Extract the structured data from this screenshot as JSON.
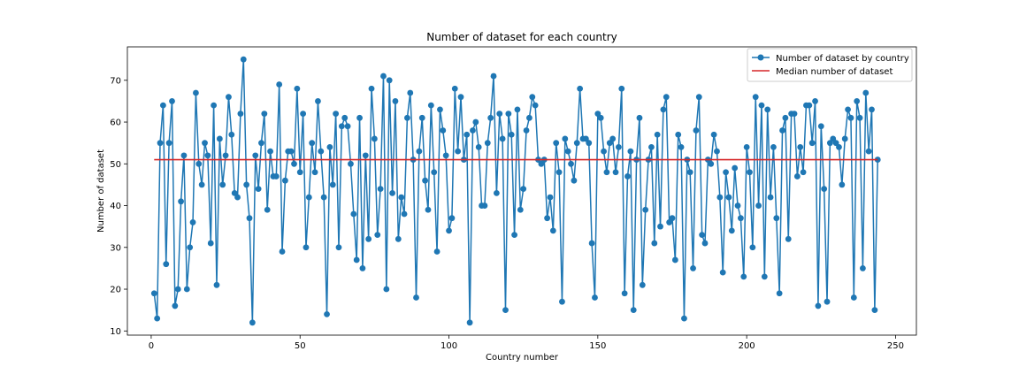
{
  "chart_data": {
    "type": "line",
    "title": "Number of dataset for each country",
    "xlabel": "Country number",
    "ylabel": "Number of dataset",
    "xlim": [
      -8,
      257
    ],
    "ylim": [
      9,
      78
    ],
    "xticks": [
      0,
      50,
      100,
      150,
      200,
      250
    ],
    "yticks": [
      10,
      20,
      30,
      40,
      50,
      60,
      70
    ],
    "grid": false,
    "legend_position": "top-right",
    "series": [
      {
        "name": "Number of dataset by country",
        "color": "#1f77b4",
        "marker": "circle",
        "x_start": 1,
        "values": [
          19,
          13,
          55,
          64,
          26,
          55,
          65,
          16,
          20,
          41,
          52,
          20,
          30,
          36,
          67,
          50,
          45,
          55,
          52,
          31,
          64,
          21,
          56,
          45,
          52,
          66,
          57,
          43,
          42,
          62,
          75,
          45,
          37,
          12,
          52,
          44,
          55,
          62,
          39,
          53,
          47,
          47,
          69,
          29,
          46,
          53,
          53,
          50,
          68,
          48,
          62,
          30,
          42,
          55,
          48,
          65,
          53,
          42,
          14,
          54,
          45,
          62,
          30,
          59,
          61,
          59,
          50,
          38,
          27,
          61,
          25,
          52,
          32,
          68,
          56,
          33,
          44,
          71,
          20,
          70,
          43,
          65,
          32,
          42,
          38,
          61,
          67,
          51,
          18,
          53,
          61,
          46,
          39,
          64,
          48,
          29,
          63,
          58,
          52,
          34,
          37,
          68,
          53,
          66,
          51,
          57,
          12,
          58,
          60,
          54,
          40,
          40,
          55,
          61,
          71,
          43,
          62,
          56,
          15,
          62,
          57,
          33,
          63,
          39,
          44,
          58,
          61,
          66,
          64,
          51,
          50,
          51,
          37,
          42,
          34,
          55,
          48,
          17,
          56,
          53,
          50,
          46,
          55,
          68,
          56,
          56,
          55,
          31,
          18,
          62,
          61,
          53,
          48,
          55,
          56,
          48,
          54,
          68,
          19,
          47,
          53,
          15,
          51,
          61,
          21,
          39,
          51,
          54,
          31,
          57,
          35,
          63,
          66,
          36,
          37,
          27,
          57,
          54,
          13,
          51,
          48,
          25,
          58,
          66,
          33,
          31,
          51,
          50,
          57,
          53,
          42,
          24,
          48,
          42,
          34,
          49,
          40,
          37,
          23,
          54,
          48,
          30,
          66,
          40,
          64,
          23,
          63,
          42,
          54,
          37,
          19,
          58,
          61,
          32,
          62,
          62,
          47,
          54,
          48,
          64,
          64,
          55,
          65,
          16,
          59,
          44,
          17,
          55,
          56,
          55,
          54,
          45,
          56,
          63,
          61,
          18,
          65,
          61,
          25,
          67,
          53,
          63,
          15,
          51
        ]
      },
      {
        "name": "Median number of dataset",
        "color": "#d62728",
        "y": 51,
        "x_range": [
          1,
          244
        ]
      }
    ]
  }
}
